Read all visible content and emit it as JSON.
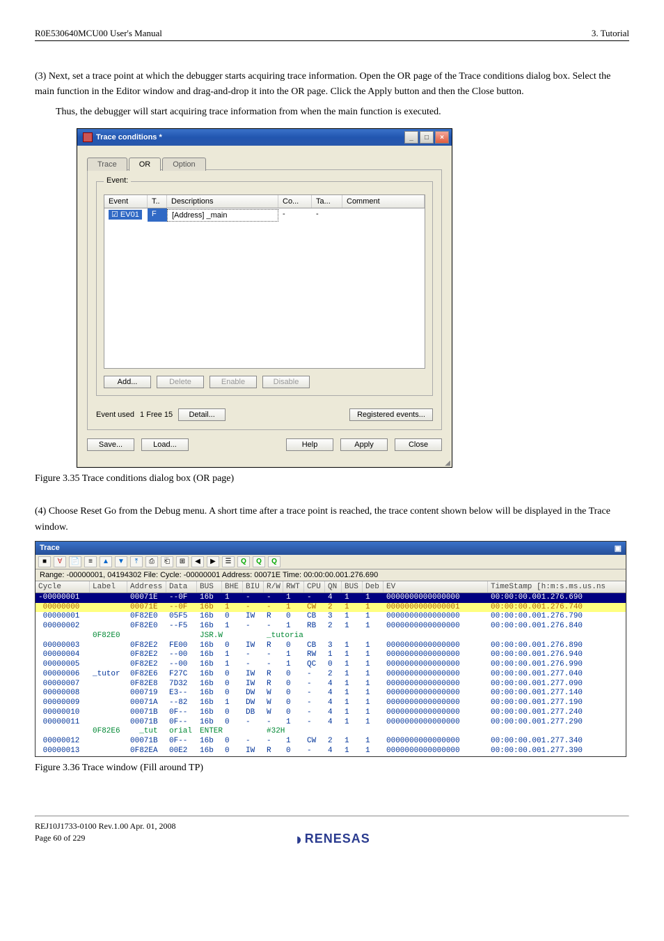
{
  "header": {
    "left": "R0E530640MCU00 User's Manual",
    "right": "3. Tutorial"
  },
  "para3_prefix": "(3)",
  "para3_text1": " Next, set a trace point at which the debugger starts acquiring trace information. Open the OR page of the Trace conditions dialog box. Select the main function in the Editor window and drag-and-drop it into the OR page. Click the Apply button and then the Close button.",
  "para3_text2": "Thus, the debugger will start acquiring trace information from when the main function is executed.",
  "dialog": {
    "title": "Trace conditions *",
    "tab1": "Trace",
    "tab2": "OR",
    "tab3": "Option",
    "group": "Event:",
    "cols": {
      "event": "Event",
      "t": "T..",
      "desc": "Descriptions",
      "co": "Co...",
      "ta": "Ta...",
      "comment": "Comment"
    },
    "row": {
      "event": "EV01",
      "t": "F",
      "desc": "[Address] _main",
      "co": "-",
      "ta": "-"
    },
    "btnAdd": "Add...",
    "btnDelete": "Delete",
    "btnEnable": "Enable",
    "btnDisable": "Disable",
    "usedLabel": "Event used",
    "usedValue": "1  Free 15",
    "btnDetail": "Detail...",
    "btnReg": "Registered events...",
    "btnSave": "Save...",
    "btnLoad": "Load...",
    "btnHelp": "Help",
    "btnApply": "Apply",
    "btnClose": "Close"
  },
  "caption1": "Figure 3.35 Trace conditions dialog box (OR page)",
  "para4_prefix": "(4)",
  "para4_text": " Choose Reset Go from the Debug menu. A short time after a trace point is reached, the trace content shown below will be displayed in the Trace window.",
  "trace": {
    "title": "Trace",
    "status": "Range: -00000001, 04194302  File:   Cycle: -00000001  Address: 00071E  Time: 00:00:00.001.276.690",
    "hdr": {
      "cycle": "Cycle",
      "label": "Label",
      "addr": "Address",
      "data": "Data",
      "bus": "BUS",
      "bhe": "BHE",
      "biu": "BIU",
      "rw": "R/W",
      "rwt": "RWT",
      "cpu": "CPU",
      "qn": "QN",
      "bus2": "BUS",
      "deb": "Deb",
      "ev": "EV",
      "ts": "TimeStamp  [h:m:s.ms.us.ns"
    },
    "rows": [
      {
        "hl": "y",
        "c": "#0033cc",
        "cycle": "-00000001",
        "label": "",
        "addr": "00071E",
        "data": "--0F",
        "bus": "16b",
        "bhe": "1",
        "biu": "-",
        "rw": "-",
        "rwt": "1",
        "cpu": "-",
        "qn": "4",
        "bus2": "1",
        "deb": "1",
        "ev": "0000000000000000",
        "ts": "00:00:00.001.276.690"
      },
      {
        "hl": "o",
        "c": "#b06000",
        "cycle": " 00000000",
        "label": "",
        "addr": "00071E",
        "data": "--0F",
        "bus": "16b",
        "bhe": "1",
        "biu": "-",
        "rw": "-",
        "rwt": "1",
        "cpu": "CW",
        "qn": "2",
        "bus2": "1",
        "deb": "1",
        "ev": "0000000000000001",
        "ts": "00:00:00.001.276.740"
      },
      {
        "c": "#003399",
        "cycle": " 00000001",
        "label": "",
        "addr": "0F82E0",
        "data": "05F5",
        "bus": "16b",
        "bhe": "0",
        "biu": "IW",
        "rw": "R",
        "rwt": "0",
        "cpu": "CB",
        "qn": "3",
        "bus2": "1",
        "deb": "1",
        "ev": "0000000000000000",
        "ts": "00:00:00.001.276.790"
      },
      {
        "c": "#003399",
        "cycle": " 00000002",
        "label": "",
        "addr": "0F82E0",
        "data": "--F5",
        "bus": "16b",
        "bhe": "1",
        "biu": "-",
        "rw": "-",
        "rwt": "1",
        "cpu": "RB",
        "qn": "2",
        "bus2": "1",
        "deb": "1",
        "ev": "0000000000000000",
        "ts": "00:00:00.001.276.840"
      },
      {
        "c": "#008833",
        "cycle": "",
        "label": "0F82E0",
        "addr": "",
        "data": "",
        "bus": "JSR.W",
        "bhe": "",
        "biu": "",
        "rw": "_tutoria",
        "rwt": "",
        "cpu": "",
        "qn": "",
        "bus2": "",
        "deb": "",
        "ev": "",
        "ts": ""
      },
      {
        "c": "#003399",
        "cycle": " 00000003",
        "label": "",
        "addr": "0F82E2",
        "data": "FE00",
        "bus": "16b",
        "bhe": "0",
        "biu": "IW",
        "rw": "R",
        "rwt": "0",
        "cpu": "CB",
        "qn": "3",
        "bus2": "1",
        "deb": "1",
        "ev": "0000000000000000",
        "ts": "00:00:00.001.276.890"
      },
      {
        "c": "#003399",
        "cycle": " 00000004",
        "label": "",
        "addr": "0F82E2",
        "data": "--00",
        "bus": "16b",
        "bhe": "1",
        "biu": "-",
        "rw": "-",
        "rwt": "1",
        "cpu": "RW",
        "qn": "1",
        "bus2": "1",
        "deb": "1",
        "ev": "0000000000000000",
        "ts": "00:00:00.001.276.940"
      },
      {
        "c": "#003399",
        "cycle": " 00000005",
        "label": "",
        "addr": "0F82E2",
        "data": "--00",
        "bus": "16b",
        "bhe": "1",
        "biu": "-",
        "rw": "-",
        "rwt": "1",
        "cpu": "QC",
        "qn": "0",
        "bus2": "1",
        "deb": "1",
        "ev": "0000000000000000",
        "ts": "00:00:00.001.276.990"
      },
      {
        "c": "#003399",
        "cycle": " 00000006",
        "label": "_tutor",
        "addr": "0F82E6",
        "data": "F27C",
        "bus": "16b",
        "bhe": "0",
        "biu": "IW",
        "rw": "R",
        "rwt": "0",
        "cpu": "-",
        "qn": "2",
        "bus2": "1",
        "deb": "1",
        "ev": "0000000000000000",
        "ts": "00:00:00.001.277.040"
      },
      {
        "c": "#003399",
        "cycle": " 00000007",
        "label": "",
        "addr": "0F82E8",
        "data": "7D32",
        "bus": "16b",
        "bhe": "0",
        "biu": "IW",
        "rw": "R",
        "rwt": "0",
        "cpu": "-",
        "qn": "4",
        "bus2": "1",
        "deb": "1",
        "ev": "0000000000000000",
        "ts": "00:00:00.001.277.090"
      },
      {
        "c": "#003399",
        "cycle": " 00000008",
        "label": "",
        "addr": "000719",
        "data": "E3--",
        "bus": "16b",
        "bhe": "0",
        "biu": "DW",
        "rw": "W",
        "rwt": "0",
        "cpu": "-",
        "qn": "4",
        "bus2": "1",
        "deb": "1",
        "ev": "0000000000000000",
        "ts": "00:00:00.001.277.140"
      },
      {
        "c": "#003399",
        "cycle": " 00000009",
        "label": "",
        "addr": "00071A",
        "data": "--82",
        "bus": "16b",
        "bhe": "1",
        "biu": "DW",
        "rw": "W",
        "rwt": "0",
        "cpu": "-",
        "qn": "4",
        "bus2": "1",
        "deb": "1",
        "ev": "0000000000000000",
        "ts": "00:00:00.001.277.190"
      },
      {
        "c": "#003399",
        "cycle": " 00000010",
        "label": "",
        "addr": "00071B",
        "data": "0F--",
        "bus": "16b",
        "bhe": "0",
        "biu": "DB",
        "rw": "W",
        "rwt": "0",
        "cpu": "-",
        "qn": "4",
        "bus2": "1",
        "deb": "1",
        "ev": "0000000000000000",
        "ts": "00:00:00.001.277.240"
      },
      {
        "c": "#003399",
        "cycle": " 00000011",
        "label": "",
        "addr": "00071B",
        "data": "0F--",
        "bus": "16b",
        "bhe": "0",
        "biu": "-",
        "rw": "-",
        "rwt": "1",
        "cpu": "-",
        "qn": "4",
        "bus2": "1",
        "deb": "1",
        "ev": "0000000000000000",
        "ts": "00:00:00.001.277.290"
      },
      {
        "c": "#008833",
        "cycle": "",
        "label": "0F82E6",
        "addr": "  _tut",
        "data": "orial",
        "bus": "ENTER",
        "bhe": "",
        "biu": "",
        "rw": "#32H",
        "rwt": "",
        "cpu": "",
        "qn": "",
        "bus2": "",
        "deb": "",
        "ev": "",
        "ts": ""
      },
      {
        "c": "#003399",
        "cycle": " 00000012",
        "label": "",
        "addr": "00071B",
        "data": "0F--",
        "bus": "16b",
        "bhe": "0",
        "biu": "-",
        "rw": "-",
        "rwt": "1",
        "cpu": "CW",
        "qn": "2",
        "bus2": "1",
        "deb": "1",
        "ev": "0000000000000000",
        "ts": "00:00:00.001.277.340"
      },
      {
        "c": "#003399",
        "cycle": " 00000013",
        "label": "",
        "addr": "0F82EA",
        "data": "00E2",
        "bus": "16b",
        "bhe": "0",
        "biu": "IW",
        "rw": "R",
        "rwt": "0",
        "cpu": "-",
        "qn": "4",
        "bus2": "1",
        "deb": "1",
        "ev": "0000000000000000",
        "ts": "00:00:00.001.277.390"
      }
    ]
  },
  "caption2": "Figure 3.36 Trace window (Fill around TP)",
  "footer": {
    "line1": "REJ10J1733-0100   Rev.1.00   Apr. 01, 2008",
    "line2": "Page 60 of 229",
    "logo": "RENESAS"
  },
  "colors": {
    "rowHL_bg": "#000080",
    "rowHL_fg": "#ffffff",
    "rowO_bg": "#ffff80"
  }
}
